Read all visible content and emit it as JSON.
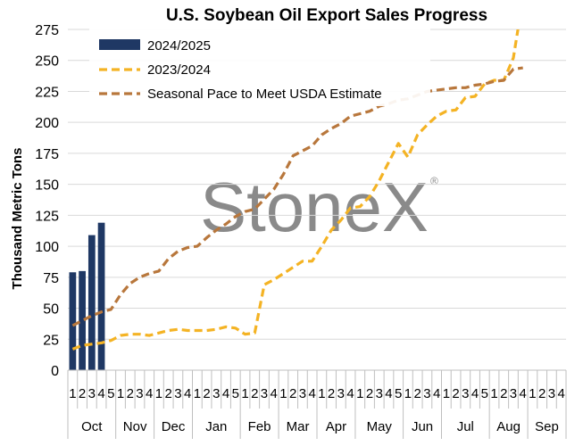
{
  "chart_data": {
    "type": "bar+line",
    "title": "U.S. Soybean Oil Export Sales Progress",
    "ylabel": "Thousand Metric Tons",
    "xlabel": "",
    "ylim": [
      0,
      275
    ],
    "yticks": [
      0,
      25,
      50,
      75,
      100,
      125,
      150,
      175,
      200,
      225,
      250,
      275
    ],
    "watermark": "StoneX",
    "watermark_mark": "®",
    "months": [
      {
        "label": "Oct",
        "weeks": [
          "1",
          "2",
          "3",
          "4",
          "5"
        ]
      },
      {
        "label": "Nov",
        "weeks": [
          "1",
          "2",
          "3",
          "4"
        ]
      },
      {
        "label": "Dec",
        "weeks": [
          "1",
          "2",
          "3",
          "4"
        ]
      },
      {
        "label": "Jan",
        "weeks": [
          "1",
          "2",
          "3",
          "4",
          "5"
        ]
      },
      {
        "label": "Feb",
        "weeks": [
          "1",
          "2",
          "3",
          "4"
        ]
      },
      {
        "label": "Mar",
        "weeks": [
          "1",
          "2",
          "3",
          "4"
        ]
      },
      {
        "label": "Apr",
        "weeks": [
          "1",
          "2",
          "3",
          "4"
        ]
      },
      {
        "label": "May",
        "weeks": [
          "1",
          "2",
          "3",
          "4",
          "5"
        ]
      },
      {
        "label": "Jun",
        "weeks": [
          "1",
          "2",
          "3",
          "4"
        ]
      },
      {
        "label": "Jul",
        "weeks": [
          "1",
          "2",
          "3",
          "4",
          "5"
        ]
      },
      {
        "label": "Aug",
        "weeks": [
          "1",
          "2",
          "3",
          "4"
        ]
      },
      {
        "label": "Sep",
        "weeks": [
          "1",
          "2",
          "3",
          "4"
        ]
      }
    ],
    "series": [
      {
        "name": "2024/2025",
        "kind": "bar",
        "color": "#1f3864",
        "values": [
          79,
          80,
          109,
          119
        ]
      },
      {
        "name": "2023/2024",
        "kind": "line-dashed",
        "color": "#f4b324",
        "values": [
          17,
          20,
          21,
          22,
          24,
          28,
          29,
          29,
          28,
          30,
          32,
          33,
          32,
          32,
          32,
          33,
          35,
          34,
          29,
          30,
          69,
          73,
          78,
          83,
          88,
          88,
          100,
          113,
          121,
          131,
          132,
          140,
          153,
          168,
          183,
          172,
          190,
          198,
          205,
          209,
          210,
          220,
          221,
          231,
          234,
          234,
          252,
          300
        ]
      },
      {
        "name": "Seasonal Pace to Meet USDA Estimate",
        "kind": "line-dashed",
        "color": "#b8773c",
        "values": [
          36,
          40,
          44,
          47,
          49,
          61,
          70,
          75,
          78,
          80,
          90,
          96,
          99,
          100,
          107,
          113,
          118,
          124,
          128,
          130,
          138,
          146,
          158,
          173,
          177,
          181,
          190,
          195,
          199,
          205,
          207,
          209,
          213,
          215,
          218,
          219,
          222,
          225,
          226,
          227,
          228,
          228,
          230,
          231,
          233,
          234,
          243,
          244
        ]
      }
    ],
    "legend_position": "top-left-inside"
  }
}
